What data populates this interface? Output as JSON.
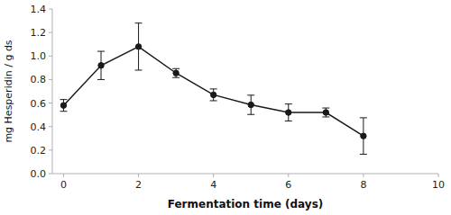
{
  "chart_data": {
    "type": "line",
    "x": [
      0,
      1,
      2,
      3,
      4,
      5,
      6,
      7,
      8
    ],
    "values": [
      0.58,
      0.92,
      1.08,
      0.855,
      0.67,
      0.585,
      0.52,
      0.52,
      0.32
    ],
    "errors": [
      0.05,
      0.12,
      0.2,
      0.038,
      0.05,
      0.082,
      0.072,
      0.038,
      0.155
    ],
    "xlabel": "Fermentation time (days)",
    "ylabel": "mg Hesperidin / g ds",
    "xlim": [
      -0.3,
      10
    ],
    "ylim": [
      0.0,
      1.4
    ],
    "xticks": [
      0,
      2,
      4,
      6,
      8,
      10
    ],
    "yticks": [
      {
        "value": 0,
        "label": "0.0"
      },
      0.2,
      0.4,
      0.6,
      0.8,
      {
        "value": 1,
        "label": "1.0"
      },
      1.2,
      1.4
    ],
    "color": "#1a1a1a",
    "marker": "circle",
    "grid": false
  }
}
